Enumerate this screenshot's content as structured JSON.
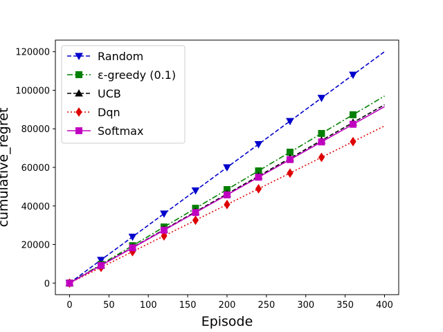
{
  "chart_data": {
    "type": "line",
    "title": "",
    "xlabel": "Episode",
    "ylabel": "cumulative_regret",
    "xlim": [
      -18,
      418
    ],
    "ylim": [
      -6000,
      126000
    ],
    "xticks": [
      0,
      50,
      100,
      150,
      200,
      250,
      300,
      350,
      400
    ],
    "yticks": [
      0,
      20000,
      40000,
      60000,
      80000,
      100000,
      120000
    ],
    "grid": false,
    "legend_position": "upper left",
    "series": [
      {
        "name": "Random",
        "color": "#0000cc",
        "linestyle": "dashed",
        "marker": "triangle-down",
        "x": [
          0,
          40,
          80,
          120,
          160,
          200,
          240,
          280,
          320,
          360,
          400
        ],
        "y": [
          0,
          12000,
          24000,
          36000,
          48000,
          60000,
          72000,
          84000,
          96000,
          108000,
          120000
        ],
        "marker_every": 40
      },
      {
        "name": "ε-greedy (0.1)",
        "color": "#008000",
        "linestyle": "dashdot",
        "marker": "square",
        "x": [
          0,
          40,
          80,
          120,
          160,
          200,
          240,
          280,
          320,
          360,
          400
        ],
        "y": [
          0,
          9700,
          19400,
          29100,
          38800,
          48500,
          58200,
          67900,
          77600,
          87300,
          97000
        ],
        "marker_every": 40
      },
      {
        "name": "UCB",
        "color": "#000000",
        "linestyle": "dashed",
        "marker": "triangle-up",
        "x": [
          0,
          40,
          80,
          120,
          160,
          200,
          240,
          280,
          320,
          360,
          400
        ],
        "y": [
          0,
          9250,
          18500,
          27750,
          37000,
          46250,
          55500,
          64750,
          74000,
          83250,
          92500
        ],
        "marker_every": 40
      },
      {
        "name": "Dqn",
        "color": "#dd0000",
        "linestyle": "dotted",
        "marker": "diamond",
        "x": [
          0,
          40,
          80,
          120,
          160,
          200,
          240,
          280,
          320,
          360,
          400
        ],
        "y": [
          0,
          8150,
          16300,
          24450,
          32600,
          40750,
          48900,
          57050,
          65200,
          73350,
          81500
        ],
        "marker_every": 40
      },
      {
        "name": "Softmax",
        "color": "#c000c0",
        "linestyle": "solid",
        "marker": "square",
        "x": [
          0,
          40,
          80,
          120,
          160,
          200,
          240,
          280,
          320,
          360,
          400
        ],
        "y": [
          0,
          9150,
          18300,
          27450,
          36600,
          45750,
          54900,
          64050,
          73200,
          82350,
          91500
        ],
        "marker_every": 40
      }
    ]
  }
}
